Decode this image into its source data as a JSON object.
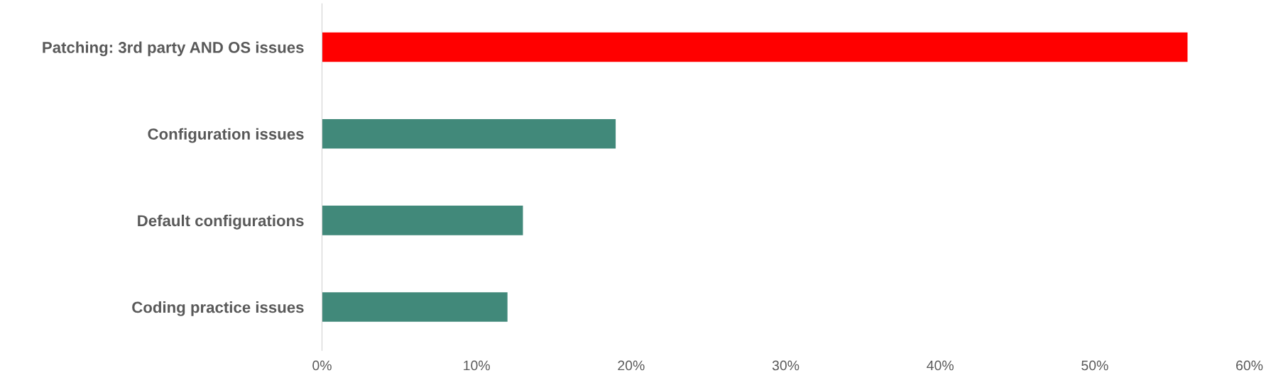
{
  "chart_data": {
    "type": "bar",
    "orientation": "horizontal",
    "categories": [
      "Patching: 3rd party AND OS issues",
      "Configuration issues",
      "Default configurations",
      "Coding practice issues"
    ],
    "values": [
      56,
      19,
      13,
      12
    ],
    "colors": [
      "#ff0000",
      "#41897a",
      "#41897a",
      "#41897a"
    ],
    "xlim": [
      0,
      60
    ],
    "xticks": [
      {
        "value": 0,
        "label": "0%"
      },
      {
        "value": 10,
        "label": "10%"
      },
      {
        "value": 20,
        "label": "20%"
      },
      {
        "value": 30,
        "label": "30%"
      },
      {
        "value": 40,
        "label": "40%"
      },
      {
        "value": 50,
        "label": "50%"
      },
      {
        "value": 60,
        "label": "60%"
      }
    ],
    "grid": false,
    "legend": false
  }
}
